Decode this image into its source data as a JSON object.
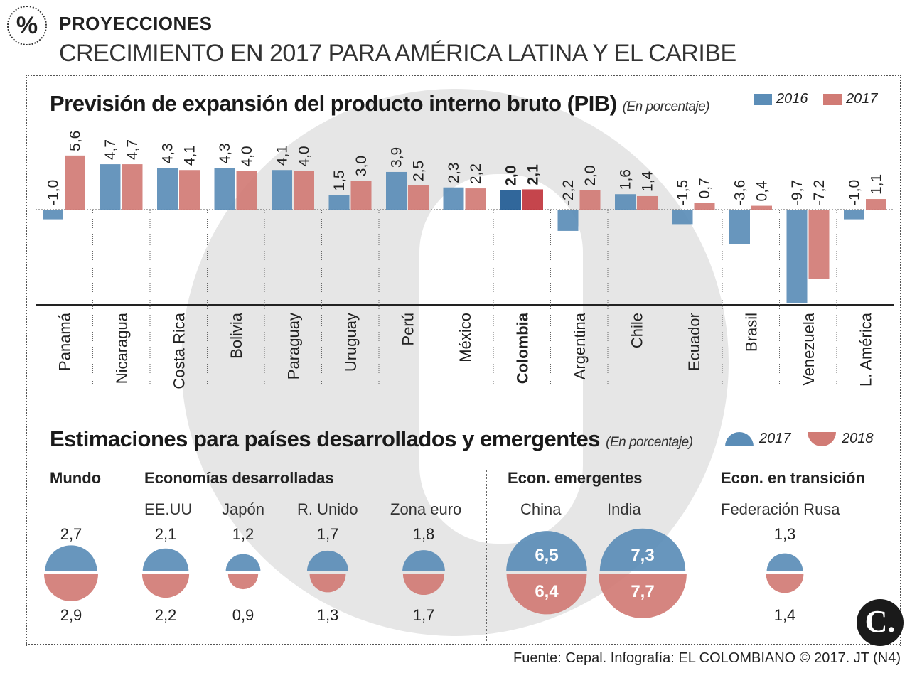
{
  "header": {
    "badge": "%",
    "kicker": "PROYECCIONES",
    "title": "CRECIMIENTO EN 2017 PARA AMÉRICA LATINA  Y EL CARIBE"
  },
  "colors": {
    "blue": "#5b8db7",
    "red": "#d17b75",
    "blue_dark": "#1f5a93",
    "red_dark": "#c0353d"
  },
  "chart_data": [
    {
      "type": "bar",
      "title": "Previsión de expansión del producto interno bruto (PIB)",
      "unit_note": "(En porcentaje)",
      "categories": [
        "Panamá",
        "Nicaragua",
        "Costa Rica",
        "Bolivia",
        "Paraguay",
        "Uruguay",
        "Perú",
        "México",
        "Colombia",
        "Argentina",
        "Chile",
        "Ecuador",
        "Brasil",
        "Venezuela",
        "L. América"
      ],
      "highlight": "Colombia",
      "series": [
        {
          "name": "2016",
          "values": [
            -1.0,
            4.7,
            4.3,
            4.3,
            4.1,
            1.5,
            3.9,
            2.3,
            2.0,
            -2.2,
            1.6,
            -1.5,
            -3.6,
            -9.7,
            -1.0
          ],
          "labels": [
            "-1,0",
            "4,7",
            "4,3",
            "4,3",
            "4,1",
            "1,5",
            "3,9",
            "2,3",
            "2,0",
            "-2,2",
            "1,6",
            "-1,5",
            "-3,6",
            "-9,7",
            "-1,0"
          ]
        },
        {
          "name": "2017",
          "values": [
            5.6,
            4.7,
            4.1,
            4.0,
            4.0,
            3.0,
            2.5,
            2.2,
            2.1,
            2.0,
            1.4,
            0.7,
            0.4,
            -7.2,
            1.1
          ],
          "labels": [
            "5,6",
            "4,7",
            "4,1",
            "4,0",
            "4,0",
            "3,0",
            "2,5",
            "2,2",
            "2,1",
            "2,0",
            "1,4",
            "0,7",
            "0,4",
            "-7,2",
            "1,1"
          ]
        }
      ],
      "legend": [
        "2016",
        "2017"
      ],
      "ylim": [
        -9.7,
        5.6
      ]
    },
    {
      "type": "bubble",
      "title": "Estimaciones para países desarrollados y emergentes",
      "unit_note": "(En porcentaje)",
      "legend": [
        "2017",
        "2018"
      ],
      "groups": [
        {
          "name": "Mundo",
          "items": [
            {
              "name": "",
              "v2017": 2.7,
              "v2018": 2.9,
              "l2017": "2,7",
              "l2018": "2,9"
            }
          ]
        },
        {
          "name": "Economías desarrolladas",
          "items": [
            {
              "name": "EE.UU",
              "v2017": 2.1,
              "v2018": 2.2,
              "l2017": "2,1",
              "l2018": "2,2"
            },
            {
              "name": "Japón",
              "v2017": 1.2,
              "v2018": 0.9,
              "l2017": "1,2",
              "l2018": "0,9"
            },
            {
              "name": "R. Unido",
              "v2017": 1.7,
              "v2018": 1.3,
              "l2017": "1,7",
              "l2018": "1,3"
            },
            {
              "name": "Zona euro",
              "v2017": 1.8,
              "v2018": 1.7,
              "l2017": "1,8",
              "l2018": "1,7"
            }
          ]
        },
        {
          "name": "Econ. emergentes",
          "items": [
            {
              "name": "China",
              "v2017": 6.5,
              "v2018": 6.4,
              "l2017": "6,5",
              "l2018": "6,4"
            },
            {
              "name": "India",
              "v2017": 7.3,
              "v2018": 7.7,
              "l2017": "7,3",
              "l2018": "7,7"
            }
          ]
        },
        {
          "name": "Econ. en transición",
          "items": [
            {
              "name": "Federación Rusa",
              "v2017": 1.3,
              "v2018": 1.4,
              "l2017": "1,3",
              "l2018": "1,4"
            }
          ]
        }
      ]
    }
  ],
  "footer": {
    "source": "Fuente: Cepal. Infografía: EL COLOMBIANO © 2017. JT (N4)",
    "logo": "C."
  }
}
